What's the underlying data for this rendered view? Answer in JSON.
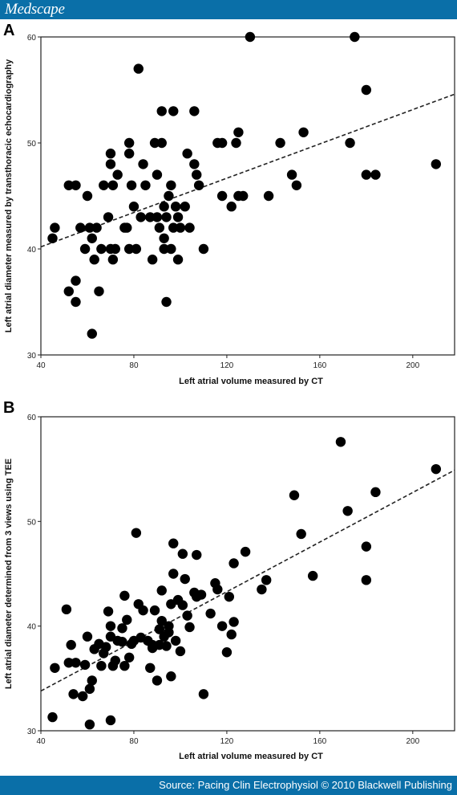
{
  "header": {
    "brand": "Medscape"
  },
  "footer": {
    "source": "Source: Pacing Clin Electrophysiol © 2010 Blackwell Publishing"
  },
  "colors": {
    "bar": "#0a6fa8",
    "marker": "#000000"
  },
  "chart_data": [
    {
      "type": "scatter",
      "panel_label": "A",
      "title": "",
      "xlabel": "Left atrial volume measured by CT",
      "ylabel": "Left atrial diameter measured by transthoracic echocardiography",
      "xlim": [
        40,
        218
      ],
      "ylim": [
        30,
        60
      ],
      "xticks": [
        40,
        80,
        120,
        160,
        200
      ],
      "yticks": [
        30,
        40,
        50,
        60
      ],
      "grid": false,
      "trendline": {
        "style": "dashed",
        "start": [
          40,
          40.2
        ],
        "end": [
          218,
          54.6
        ]
      },
      "points": [
        [
          45,
          41
        ],
        [
          46,
          42
        ],
        [
          52,
          46
        ],
        [
          55,
          46
        ],
        [
          52,
          36
        ],
        [
          55,
          37
        ],
        [
          55,
          35
        ],
        [
          57,
          42
        ],
        [
          59,
          40
        ],
        [
          60,
          45
        ],
        [
          61,
          42
        ],
        [
          62,
          32
        ],
        [
          62,
          41
        ],
        [
          63,
          39
        ],
        [
          64,
          42
        ],
        [
          65,
          36
        ],
        [
          66,
          40
        ],
        [
          67,
          46
        ],
        [
          69,
          43
        ],
        [
          70,
          40
        ],
        [
          70,
          49
        ],
        [
          70,
          48
        ],
        [
          71,
          39
        ],
        [
          72,
          40
        ],
        [
          71,
          46
        ],
        [
          73,
          47
        ],
        [
          76,
          42
        ],
        [
          78,
          50
        ],
        [
          78,
          49
        ],
        [
          78,
          40
        ],
        [
          77,
          42
        ],
        [
          79,
          46
        ],
        [
          80,
          44
        ],
        [
          81,
          40
        ],
        [
          82,
          57
        ],
        [
          83,
          43
        ],
        [
          84,
          48
        ],
        [
          85,
          46
        ],
        [
          87,
          43
        ],
        [
          88,
          39
        ],
        [
          89,
          50
        ],
        [
          90,
          47
        ],
        [
          90,
          43
        ],
        [
          91,
          42
        ],
        [
          92,
          53
        ],
        [
          92,
          50
        ],
        [
          93,
          44
        ],
        [
          93,
          41
        ],
        [
          93,
          40
        ],
        [
          94,
          35
        ],
        [
          94,
          43
        ],
        [
          95,
          45
        ],
        [
          96,
          46
        ],
        [
          96,
          40
        ],
        [
          97,
          42
        ],
        [
          97,
          53
        ],
        [
          98,
          44
        ],
        [
          99,
          39
        ],
        [
          99,
          43
        ],
        [
          100,
          42
        ],
        [
          102,
          44
        ],
        [
          103,
          49
        ],
        [
          104,
          42
        ],
        [
          106,
          53
        ],
        [
          106,
          48
        ],
        [
          107,
          47
        ],
        [
          108,
          46
        ],
        [
          110,
          40
        ],
        [
          116,
          50
        ],
        [
          118,
          45
        ],
        [
          118,
          50
        ],
        [
          122,
          44
        ],
        [
          124,
          50
        ],
        [
          125,
          45
        ],
        [
          125,
          51
        ],
        [
          127,
          45
        ],
        [
          130,
          60
        ],
        [
          138,
          45
        ],
        [
          143,
          50
        ],
        [
          148,
          47
        ],
        [
          150,
          46
        ],
        [
          153,
          51
        ],
        [
          173,
          50
        ],
        [
          175,
          60
        ],
        [
          180,
          55
        ],
        [
          180,
          47
        ],
        [
          184,
          47
        ],
        [
          210,
          48
        ]
      ]
    },
    {
      "type": "scatter",
      "panel_label": "B",
      "title": "",
      "xlabel": "Left atrial volume measured by CT",
      "ylabel": "Left atrial diameter determined from 3 views using TEE",
      "xlim": [
        40,
        218
      ],
      "ylim": [
        30,
        60
      ],
      "xticks": [
        40,
        80,
        120,
        160,
        200
      ],
      "yticks": [
        30,
        40,
        50,
        60
      ],
      "grid": false,
      "trendline": {
        "style": "dashed",
        "start": [
          40,
          33.8
        ],
        "end": [
          218,
          54.9
        ]
      },
      "points": [
        [
          45,
          31.3
        ],
        [
          46,
          36
        ],
        [
          51,
          41.6
        ],
        [
          52,
          36.5
        ],
        [
          53,
          38.2
        ],
        [
          54,
          33.5
        ],
        [
          55,
          36.5
        ],
        [
          58,
          33.3
        ],
        [
          59,
          36.3
        ],
        [
          60,
          39
        ],
        [
          61,
          34
        ],
        [
          62,
          34.8
        ],
        [
          61,
          30.6
        ],
        [
          63,
          37.8
        ],
        [
          65,
          38.3
        ],
        [
          66,
          36.2
        ],
        [
          67,
          37.4
        ],
        [
          68,
          38
        ],
        [
          69,
          41.4
        ],
        [
          70,
          39
        ],
        [
          70,
          40
        ],
        [
          70,
          31
        ],
        [
          71,
          36.2
        ],
        [
          72,
          36.7
        ],
        [
          73,
          38.6
        ],
        [
          75,
          39.8
        ],
        [
          75,
          38.5
        ],
        [
          76,
          36.2
        ],
        [
          76,
          42.9
        ],
        [
          77,
          40.6
        ],
        [
          78,
          37
        ],
        [
          79,
          38.3
        ],
        [
          80,
          38.6
        ],
        [
          81,
          48.9
        ],
        [
          82,
          42.1
        ],
        [
          83,
          38.9
        ],
        [
          84,
          41.5
        ],
        [
          86,
          38.6
        ],
        [
          87,
          36
        ],
        [
          88,
          37.9
        ],
        [
          88,
          38.2
        ],
        [
          89,
          41.5
        ],
        [
          90,
          34.8
        ],
        [
          91,
          38.2
        ],
        [
          91,
          39.7
        ],
        [
          92,
          40.5
        ],
        [
          92,
          43.4
        ],
        [
          93,
          39
        ],
        [
          94,
          38.1
        ],
        [
          95,
          40
        ],
        [
          95,
          39.4
        ],
        [
          96,
          42.1
        ],
        [
          96,
          35.2
        ],
        [
          97,
          47.9
        ],
        [
          97,
          45
        ],
        [
          98,
          38.6
        ],
        [
          99,
          42.5
        ],
        [
          100,
          37.6
        ],
        [
          101,
          42
        ],
        [
          101,
          46.9
        ],
        [
          102,
          44.5
        ],
        [
          103,
          41
        ],
        [
          104,
          39.9
        ],
        [
          106,
          43.2
        ],
        [
          107,
          42.8
        ],
        [
          107,
          46.8
        ],
        [
          109,
          43
        ],
        [
          110,
          33.5
        ],
        [
          113,
          41.2
        ],
        [
          115,
          44.1
        ],
        [
          116,
          43.5
        ],
        [
          118,
          40
        ],
        [
          120,
          37.5
        ],
        [
          121,
          42.8
        ],
        [
          122,
          39.2
        ],
        [
          123,
          40.4
        ],
        [
          123,
          46
        ],
        [
          128,
          47.1
        ],
        [
          135,
          43.5
        ],
        [
          137,
          44.4
        ],
        [
          149,
          52.5
        ],
        [
          152,
          48.8
        ],
        [
          157,
          44.8
        ],
        [
          169,
          57.6
        ],
        [
          172,
          51
        ],
        [
          180,
          47.6
        ],
        [
          180,
          44.4
        ],
        [
          184,
          52.8
        ],
        [
          210,
          55
        ]
      ]
    }
  ]
}
